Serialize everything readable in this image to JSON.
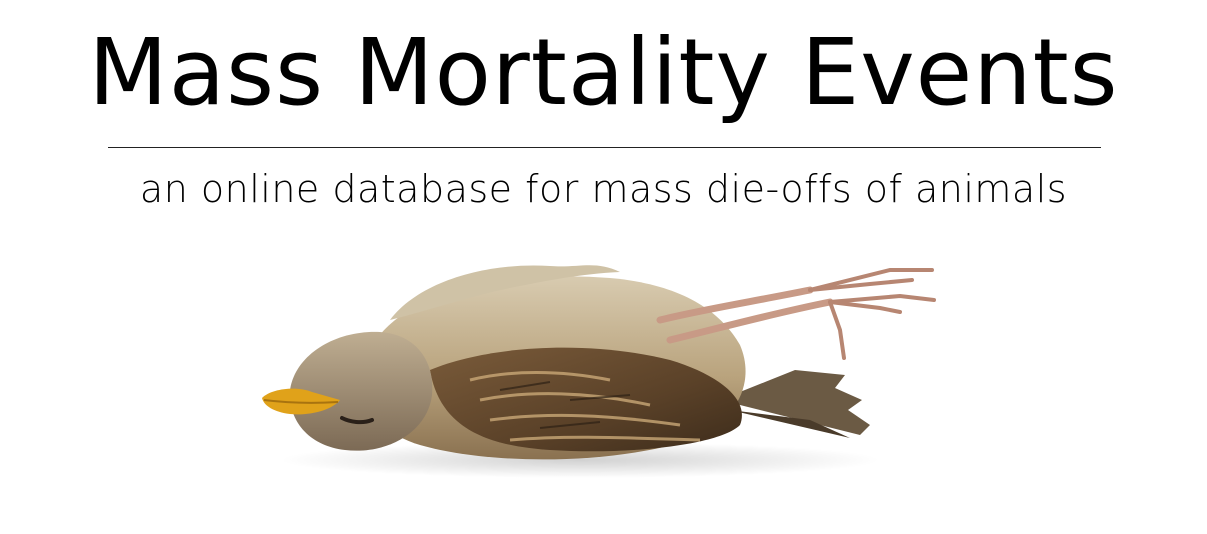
{
  "header": {
    "title": "Mass Mortality Events",
    "subtitle": "an online database for mass die-offs of animals"
  },
  "hero_image": {
    "icon": "dead-bird-illustration",
    "colors": {
      "feather_light": "#c7b79a",
      "feather_dark": "#6b5134",
      "beak": "#e0a21a",
      "legs": "#c89a86"
    }
  }
}
